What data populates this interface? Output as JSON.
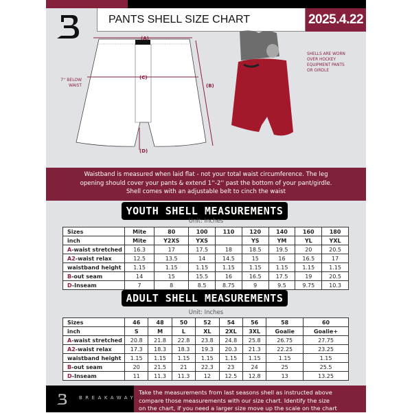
{
  "header": {
    "title": "PANTS SHELL SIZE CHART",
    "date": "2025.4.22"
  },
  "diagram": {
    "label_a": "(A)",
    "label_b": "(B)",
    "label_c": "(C)",
    "label_d": "(D)",
    "below_waist_line1": "7'' BELOW",
    "below_waist_line2": "WAIST",
    "note_lines": [
      "SHELLS ARE WORN",
      "OVER HOCKEY",
      "EQUIPMENT PANTS",
      "OR GIRDLE"
    ]
  },
  "banner": {
    "lines": [
      "Waistband is measured when laid flat - not your total waist circumference. The leg",
      "opening should cover your pants & extend 1''-2'' past the bottom of your pant/girdle.",
      "Shell comes with an adjustable belt to cinch the waist"
    ]
  },
  "youth": {
    "title": "YOUTH SHELL MEASUREMENTS",
    "unit": "Unit: Inches",
    "rows": [
      {
        "prefix": "",
        "label": "Sizes",
        "values": [
          "Mite",
          "80",
          "100",
          "110",
          "120",
          "140",
          "160",
          "180"
        ]
      },
      {
        "prefix": "",
        "label": "inch",
        "values": [
          "Mite",
          "Y2XS",
          "YXS",
          "",
          "YS",
          "YM",
          "YL",
          "YXL"
        ]
      },
      {
        "prefix": "A",
        "label": "-waist stretched",
        "values": [
          "16.3",
          "17",
          "17.5",
          "18",
          "18.5",
          "19.5",
          "20",
          "20.5"
        ]
      },
      {
        "prefix": "A2",
        "label": "-waist relax",
        "values": [
          "12.5",
          "13.5",
          "14",
          "14.5",
          "15",
          "16",
          "16.5",
          "17"
        ]
      },
      {
        "prefix": "",
        "label": "waistband height",
        "values": [
          "1.15",
          "1.15",
          "1.15",
          "1.15",
          "1.15",
          "1.15",
          "1.15",
          "1.15"
        ]
      },
      {
        "prefix": "B",
        "label": "-out seam",
        "values": [
          "14",
          "15",
          "15.5",
          "16",
          "16.5",
          "17.5",
          "19",
          "20.5"
        ]
      },
      {
        "prefix": "D",
        "label": "-Inseam",
        "values": [
          "7",
          "8",
          "8.5",
          "8.75",
          "9",
          "9.5",
          "9.75",
          "10.3"
        ]
      }
    ]
  },
  "adult": {
    "title": "ADULT SHELL MEASUREMENTS",
    "unit": "Unit: Inches",
    "rows": [
      {
        "prefix": "",
        "label": "Sizes",
        "values": [
          "46",
          "48",
          "50",
          "52",
          "54",
          "56",
          "58",
          "60"
        ]
      },
      {
        "prefix": "",
        "label": "inch",
        "values": [
          "S",
          "M",
          "L",
          "XL",
          "2XL",
          "3XL",
          "Goalie",
          "Goalie+"
        ]
      },
      {
        "prefix": "A",
        "label": "-waist stretched",
        "values": [
          "20.8",
          "21.8",
          "22.8",
          "23.8",
          "24.8",
          "25.8",
          "26.75",
          "27.75"
        ]
      },
      {
        "prefix": "A2",
        "label": "-waist relax",
        "values": [
          "17.3",
          "18.3",
          "18.3",
          "19.3",
          "20.3",
          "21.3",
          "22.25",
          "23.25"
        ]
      },
      {
        "prefix": "",
        "label": "waistband height",
        "values": [
          "1.15",
          "1.15",
          "1.15",
          "1.15",
          "1.15",
          "1.15",
          "1.15",
          "1.15"
        ]
      },
      {
        "prefix": "B",
        "label": "-out seam",
        "values": [
          "20",
          "21.5",
          "21",
          "22.3",
          "23",
          "24",
          "25",
          "25.5"
        ]
      },
      {
        "prefix": "D",
        "label": "-Inseam",
        "values": [
          "11",
          "11.3",
          "11.3",
          "12",
          "12.5",
          "12.8",
          "13",
          "13.25"
        ]
      }
    ]
  },
  "footer": {
    "brand": "BREAKAWAY",
    "lines": [
      "Take the measurements from last seasons shell as instructed above",
      "compare those measurements  with our size chart. Identify the size",
      "on the chart, if you need a larger size move up the scale on the chart"
    ]
  },
  "colors": {
    "accent": "#85213d",
    "background": "#e1e2e6"
  }
}
